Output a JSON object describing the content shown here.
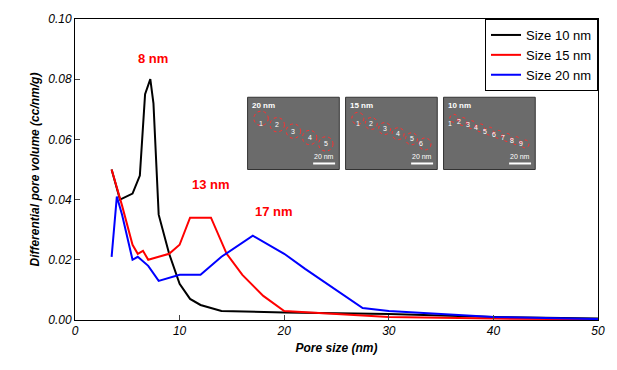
{
  "chart_data": {
    "type": "line",
    "x_label": "Pore size (nm)",
    "y_label": "Differential pore volume (cc/nm/g)",
    "xlim": [
      0,
      50
    ],
    "xticks": [
      0,
      10,
      20,
      30,
      40,
      50
    ],
    "ylim": [
      0,
      0.1
    ],
    "yticks": [
      {
        "value": 0,
        "label": "0.00"
      },
      {
        "value": 0.02,
        "label": "0.02"
      },
      {
        "value": 0.04,
        "label": "0.04"
      },
      {
        "value": 0.06,
        "label": "0.06"
      },
      {
        "value": 0.08,
        "label": "0.08"
      },
      {
        "value": 0.1,
        "label": "0.10"
      }
    ],
    "grid": false,
    "legend": "top right",
    "series": [
      {
        "name": "Size 10 nm",
        "color": "#000000",
        "x": [
          3.5,
          4.3,
          5.5,
          6.2,
          6.7,
          7.2,
          7.5,
          8,
          9,
          10,
          11,
          12,
          14,
          20,
          30,
          40,
          50
        ],
        "values": [
          0.05,
          0.04,
          0.042,
          0.048,
          0.075,
          0.08,
          0.072,
          0.035,
          0.022,
          0.012,
          0.007,
          0.005,
          0.003,
          0.0025,
          0.002,
          0.001,
          0.0005
        ]
      },
      {
        "name": "Size 15 nm",
        "color": "#ff0000",
        "x": [
          3.5,
          4.5,
          5.5,
          6,
          6.5,
          7,
          8,
          9,
          10,
          11,
          12,
          13,
          14.5,
          16,
          18,
          20,
          25,
          30,
          40,
          50
        ],
        "values": [
          0.05,
          0.038,
          0.025,
          0.022,
          0.023,
          0.02,
          0.021,
          0.022,
          0.025,
          0.034,
          0.034,
          0.034,
          0.022,
          0.015,
          0.008,
          0.003,
          0.002,
          0.001,
          0.0005,
          0.0002
        ]
      },
      {
        "name": "Size 20 nm",
        "color": "#0000ff",
        "x": [
          3.5,
          3.7,
          4,
          4.5,
          5,
          5.5,
          6,
          7,
          8,
          9,
          10,
          12,
          14,
          17,
          20,
          22,
          25,
          27.5,
          30,
          35,
          40,
          50
        ],
        "values": [
          0.021,
          0.03,
          0.041,
          0.035,
          0.028,
          0.02,
          0.021,
          0.018,
          0.013,
          0.014,
          0.015,
          0.015,
          0.021,
          0.028,
          0.022,
          0.017,
          0.01,
          0.004,
          0.003,
          0.002,
          0.001,
          0.0003
        ]
      }
    ],
    "annotations": [
      {
        "text": "8 nm",
        "x": 7.5,
        "y": 0.087,
        "color": "#ff0000"
      },
      {
        "text": "13 nm",
        "x": 13,
        "y": 0.045,
        "color": "#ff0000"
      },
      {
        "text": "17 nm",
        "x": 19,
        "y": 0.036,
        "color": "#ff0000"
      }
    ],
    "insets": [
      {
        "label": "20 nm",
        "scale_bar": "20 nm",
        "particles": [
          1,
          2,
          3,
          4,
          5
        ]
      },
      {
        "label": "15 nm",
        "scale_bar": "20 nm",
        "particles": [
          1,
          2,
          3,
          4,
          5,
          6
        ]
      },
      {
        "label": "10 nm",
        "scale_bar": "20 nm",
        "particles": [
          1,
          2,
          3,
          4,
          5,
          6,
          7,
          8,
          9
        ]
      }
    ]
  }
}
